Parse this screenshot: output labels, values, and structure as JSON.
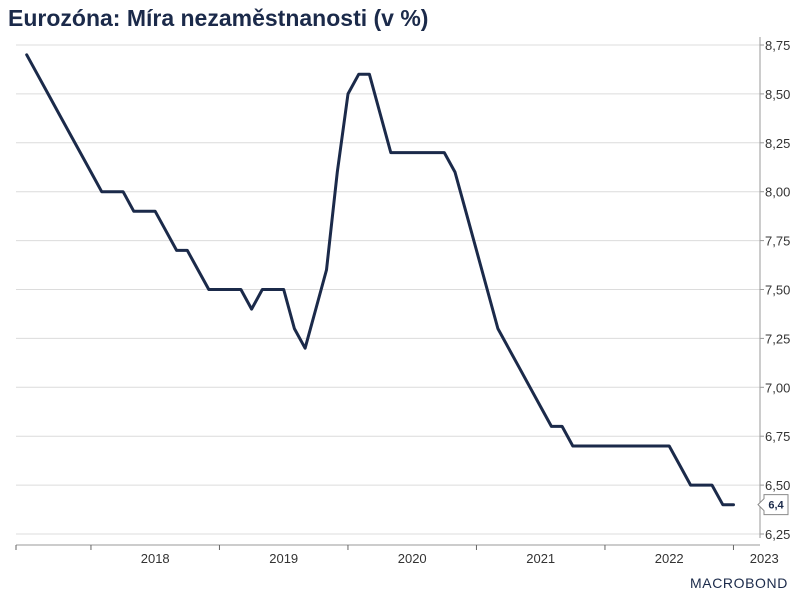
{
  "chart_data": {
    "type": "line",
    "title": "Eurozóna: Míra nezaměstnanosti (v %)",
    "xlabel": "",
    "ylabel": "",
    "ylim": [
      6.25,
      8.75
    ],
    "y_ticks": [
      "8,75",
      "8,50",
      "8,25",
      "8,00",
      "7,75",
      "7,50",
      "7,25",
      "7,00",
      "6,75",
      "6,50",
      "6,25"
    ],
    "y_tick_values": [
      8.75,
      8.5,
      8.25,
      8.0,
      7.75,
      7.5,
      7.25,
      7.0,
      6.75,
      6.5,
      6.25
    ],
    "x_ticks": [
      "2018",
      "2019",
      "2020",
      "2021",
      "2022",
      "2023"
    ],
    "x_range": [
      "2017-06",
      "2023-06"
    ],
    "grid": true,
    "y_axis_side": "right",
    "last_value_label": "6,4",
    "series": [
      {
        "color": "#1b2a4a",
        "points": [
          [
            "2017-07",
            8.7
          ],
          [
            "2017-08",
            8.6
          ],
          [
            "2017-09",
            8.5
          ],
          [
            "2017-10",
            8.4
          ],
          [
            "2017-11",
            8.3
          ],
          [
            "2017-12",
            8.2
          ],
          [
            "2018-01",
            8.1
          ],
          [
            "2018-02",
            8.0
          ],
          [
            "2018-03",
            8.0
          ],
          [
            "2018-04",
            8.0
          ],
          [
            "2018-05",
            7.9
          ],
          [
            "2018-06",
            7.9
          ],
          [
            "2018-07",
            7.9
          ],
          [
            "2018-08",
            7.8
          ],
          [
            "2018-09",
            7.7
          ],
          [
            "2018-10",
            7.7
          ],
          [
            "2018-11",
            7.6
          ],
          [
            "2018-12",
            7.5
          ],
          [
            "2019-01",
            7.5
          ],
          [
            "2019-02",
            7.5
          ],
          [
            "2019-03",
            7.5
          ],
          [
            "2019-04",
            7.4
          ],
          [
            "2019-05",
            7.5
          ],
          [
            "2019-06",
            7.5
          ],
          [
            "2019-07",
            7.5
          ],
          [
            "2019-08",
            7.3
          ],
          [
            "2019-09",
            7.2
          ],
          [
            "2019-10",
            7.4
          ],
          [
            "2019-11",
            7.6
          ],
          [
            "2019-12",
            8.1
          ],
          [
            "2020-01",
            8.5
          ],
          [
            "2020-02",
            8.6
          ],
          [
            "2020-03",
            8.6
          ],
          [
            "2020-04",
            8.4
          ],
          [
            "2020-05",
            8.2
          ],
          [
            "2020-06",
            8.2
          ],
          [
            "2020-07",
            8.2
          ],
          [
            "2020-08",
            8.2
          ],
          [
            "2020-09",
            8.2
          ],
          [
            "2020-10",
            8.2
          ],
          [
            "2020-11",
            8.1
          ],
          [
            "2020-12",
            7.9
          ],
          [
            "2021-01",
            7.7
          ],
          [
            "2021-02",
            7.5
          ],
          [
            "2021-03",
            7.3
          ],
          [
            "2021-04",
            7.2
          ],
          [
            "2021-05",
            7.1
          ],
          [
            "2021-06",
            7.0
          ],
          [
            "2021-07",
            6.9
          ],
          [
            "2021-08",
            6.8
          ],
          [
            "2021-09",
            6.8
          ],
          [
            "2021-10",
            6.7
          ],
          [
            "2021-11",
            6.7
          ],
          [
            "2021-12",
            6.7
          ],
          [
            "2022-01",
            6.7
          ],
          [
            "2022-02",
            6.7
          ],
          [
            "2022-03",
            6.7
          ],
          [
            "2022-04",
            6.7
          ],
          [
            "2022-05",
            6.7
          ],
          [
            "2022-06",
            6.7
          ],
          [
            "2022-07",
            6.7
          ],
          [
            "2022-08",
            6.6
          ],
          [
            "2022-09",
            6.5
          ],
          [
            "2022-10",
            6.5
          ],
          [
            "2022-11",
            6.5
          ],
          [
            "2022-12",
            6.4
          ],
          [
            "2023-01",
            6.4
          ]
        ]
      }
    ]
  },
  "brand": {
    "text": "MACROBOND"
  }
}
